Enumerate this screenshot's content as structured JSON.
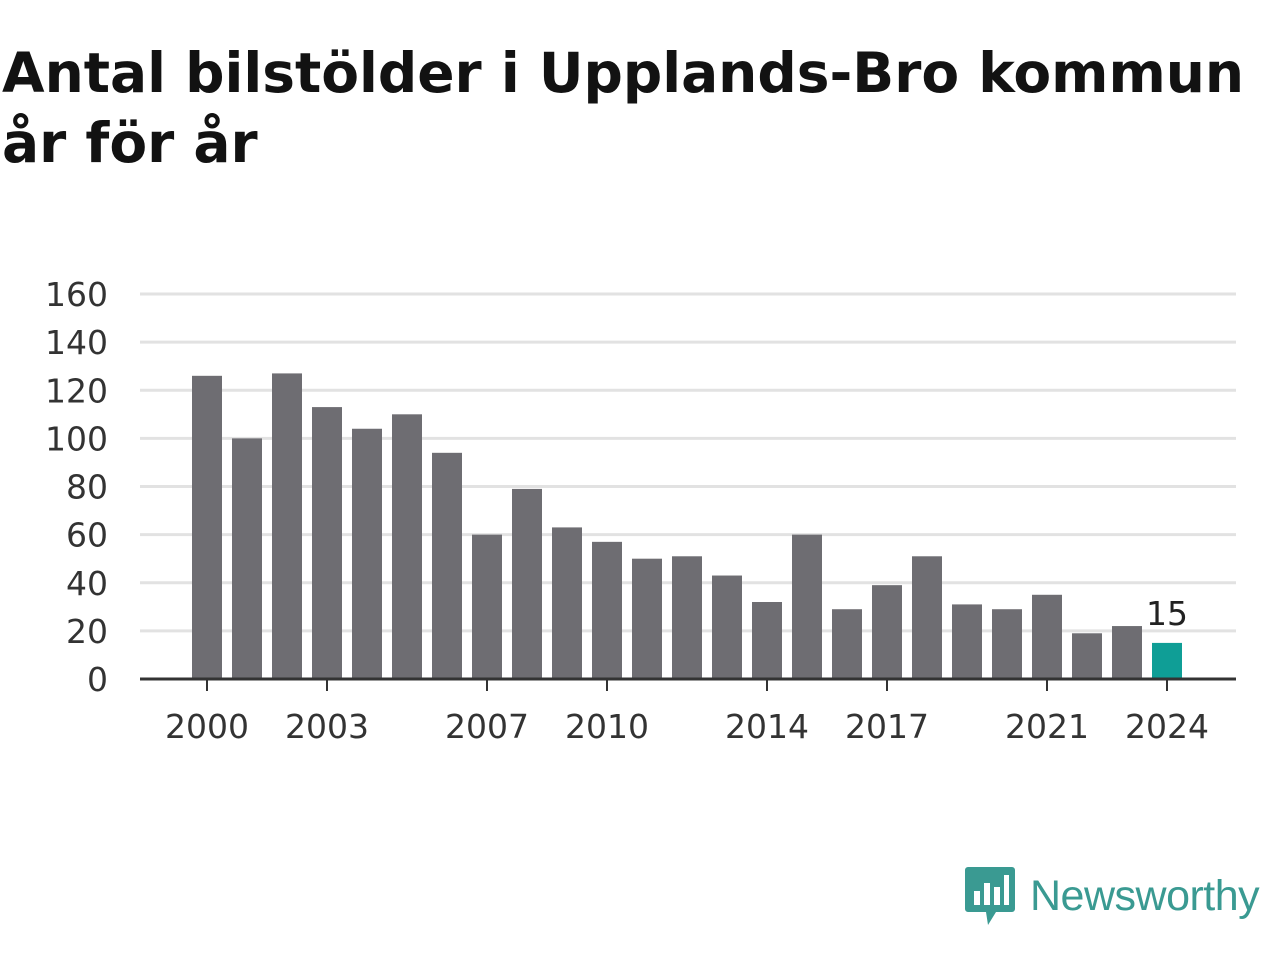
{
  "title": {
    "line1": "Antal bilstölder i Upplands-Bro kommun",
    "line2": "år för år"
  },
  "brand": {
    "name": "Newsworthy",
    "icon": "bar-chart-speech-bubble-icon",
    "color": "#3a9a92"
  },
  "colors": {
    "bar": "#6e6d72",
    "highlight": "#0f9e96",
    "grid": "#e2e2e2",
    "axis": "#333333"
  },
  "chart_data": {
    "type": "bar",
    "title": "Antal bilstölder i Upplands-Bro kommun år för år",
    "xlabel": "",
    "ylabel": "",
    "categories": [
      2000,
      2001,
      2002,
      2003,
      2004,
      2005,
      2006,
      2007,
      2008,
      2009,
      2010,
      2011,
      2012,
      2013,
      2014,
      2015,
      2016,
      2017,
      2018,
      2019,
      2020,
      2021,
      2022,
      2023,
      2024
    ],
    "values": [
      126,
      100,
      127,
      113,
      104,
      110,
      94,
      60,
      79,
      63,
      57,
      50,
      51,
      43,
      32,
      60,
      29,
      39,
      51,
      31,
      29,
      35,
      19,
      22,
      15
    ],
    "ylim": [
      0,
      160
    ],
    "yticks": [
      0,
      20,
      40,
      60,
      80,
      100,
      120,
      140,
      160
    ],
    "xticks": [
      2000,
      2003,
      2007,
      2010,
      2014,
      2017,
      2021,
      2024
    ],
    "highlight": {
      "category": 2024,
      "label": "15"
    },
    "grid": true,
    "legend": "none"
  }
}
